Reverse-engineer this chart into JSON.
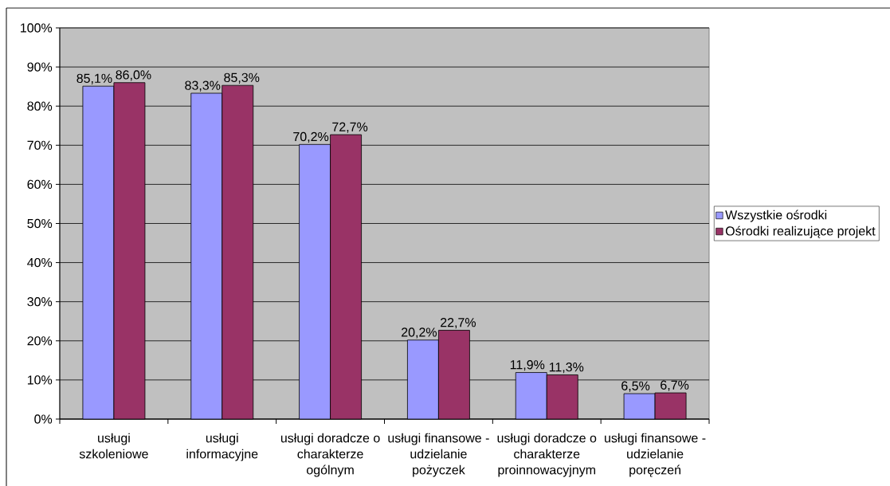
{
  "chart_data": {
    "type": "bar",
    "categories": [
      "usługi szkoleniowe",
      "usługi informacyjne",
      "usługi doradcze o charakterze ogólnym",
      "usługi finansowe - udzielanie pożyczek",
      "usługi doradcze o charakterze proinnowacyjnym",
      "usługi finansowe - udzielanie poręczeń"
    ],
    "series": [
      {
        "name": "Wszystkie ośrodki",
        "color": "#9999ff",
        "values": [
          85.1,
          83.3,
          70.2,
          20.2,
          11.9,
          6.5
        ],
        "value_labels": [
          "85,1%",
          "83,3%",
          "70,2%",
          "20,2%",
          "11,9%",
          "6,5%"
        ]
      },
      {
        "name": "Ośrodki realizujące projekt",
        "color": "#993366",
        "values": [
          86.0,
          85.3,
          72.7,
          22.7,
          11.3,
          6.7
        ],
        "value_labels": [
          "86,0%",
          "85,3%",
          "72,7%",
          "22,7%",
          "11,3%",
          "6,7%"
        ]
      }
    ],
    "ylim": [
      0,
      100
    ],
    "yticks": [
      {
        "value": 0,
        "label": "0%"
      },
      {
        "value": 10,
        "label": "10%"
      },
      {
        "value": 20,
        "label": "20%"
      },
      {
        "value": 30,
        "label": "30%"
      },
      {
        "value": 40,
        "label": "40%"
      },
      {
        "value": 50,
        "label": "50%"
      },
      {
        "value": 60,
        "label": "60%"
      },
      {
        "value": 70,
        "label": "70%"
      },
      {
        "value": 80,
        "label": "80%"
      },
      {
        "value": 90,
        "label": "90%"
      },
      {
        "value": 100,
        "label": "100%"
      }
    ],
    "grid": "y",
    "legend": "right"
  }
}
